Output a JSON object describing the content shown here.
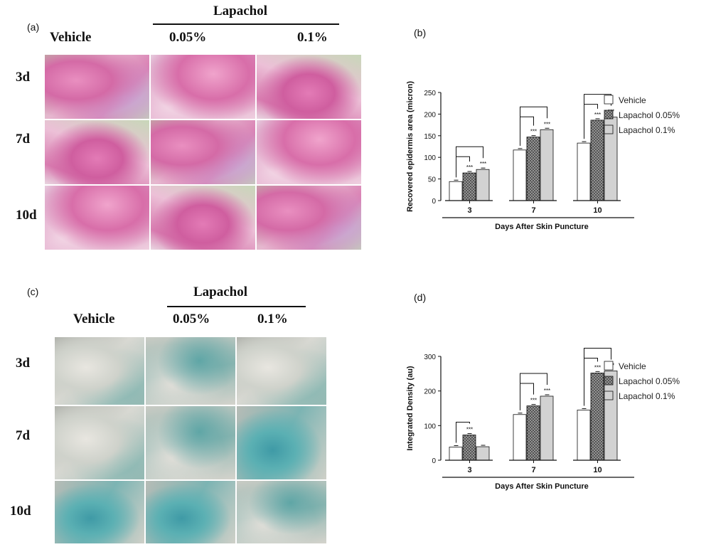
{
  "panel_a": {
    "letter": "(a)",
    "group_title": "Lapachol",
    "columns": [
      "Vehicle",
      "0.05%",
      "0.1%"
    ],
    "rows": [
      "3d",
      "7d",
      "10d"
    ]
  },
  "panel_c": {
    "letter": "(c)",
    "group_title": "Lapachol",
    "columns": [
      "Vehicle",
      "0.05%",
      "0.1%"
    ],
    "rows": [
      "3d",
      "7d",
      "10d"
    ]
  },
  "panel_b": {
    "letter": "(b)"
  },
  "panel_d": {
    "letter": "(d)"
  },
  "chart_data": [
    {
      "type": "bar",
      "panel": "(b)",
      "xlabel": "Days After Skin Puncture",
      "ylabel": "Recovered epidermis area (micron)",
      "categories": [
        "3",
        "7",
        "10"
      ],
      "ylim": [
        0,
        250
      ],
      "yticks": [
        0,
        50,
        100,
        150,
        200,
        250
      ],
      "series": [
        {
          "name": "Vehicle",
          "values": [
            44,
            117,
            133
          ],
          "fill": "white"
        },
        {
          "name": "Lapachol 0.05%",
          "values": [
            64,
            147,
            186
          ],
          "fill": "dark-hatched"
        },
        {
          "name": "Lapachol 0.1%",
          "values": [
            72,
            164,
            193
          ],
          "fill": "light-gray"
        }
      ],
      "significance": [
        "",
        "***",
        "***"
      ],
      "legend_position": "right"
    },
    {
      "type": "bar",
      "panel": "(d)",
      "xlabel": "Days After Skin Puncture",
      "ylabel": "Integrated Density (au)",
      "categories": [
        "3",
        "7",
        "10"
      ],
      "ylim": [
        0,
        300
      ],
      "yticks": [
        0,
        100,
        200,
        300
      ],
      "series": [
        {
          "name": "Vehicle",
          "values": [
            38,
            132,
            145
          ],
          "fill": "white"
        },
        {
          "name": "Lapachol 0.05%",
          "values": [
            73,
            157,
            252
          ],
          "fill": "dark-hatched"
        },
        {
          "name": "Lapachol 0.1%",
          "values": [
            39,
            185,
            258
          ],
          "fill": "light-gray"
        }
      ],
      "significance_by_category": [
        [
          "",
          "***",
          ""
        ],
        [
          "",
          "***",
          "***"
        ],
        [
          "",
          "***",
          "***"
        ]
      ],
      "legend_position": "right"
    }
  ]
}
